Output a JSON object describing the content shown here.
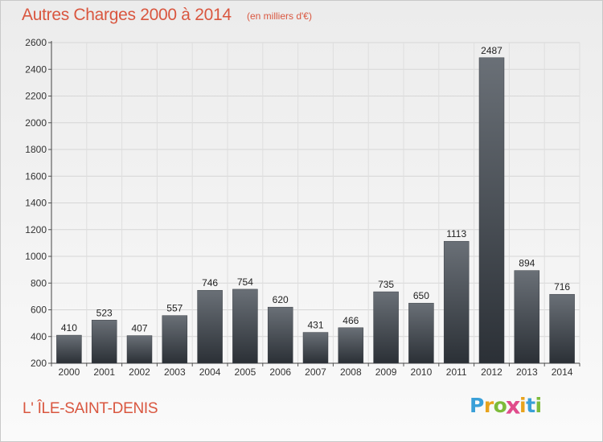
{
  "title": "Autres Charges 2000 à 2014",
  "subtitle": "(en milliers d'€)",
  "commune": "L' ÎLE-SAINT-DENIS",
  "logo": {
    "letters": [
      "P",
      "r",
      "o",
      "x",
      "i",
      "t",
      "i"
    ],
    "colors": [
      "#3aa0d8",
      "#e8a31c",
      "#7dbb3a",
      "#e04b8b",
      "#e8a31c",
      "#3aa0d8",
      "#7dbb3a"
    ]
  },
  "colors": {
    "accent": "#d9563f",
    "bar_top": "#6a7077",
    "bar_bottom": "#2b3036"
  },
  "chart_data": {
    "type": "bar",
    "categories": [
      "2000",
      "2001",
      "2002",
      "2003",
      "2004",
      "2005",
      "2006",
      "2007",
      "2008",
      "2009",
      "2010",
      "2011",
      "2012",
      "2013",
      "2014"
    ],
    "values": [
      410,
      523,
      407,
      557,
      746,
      754,
      620,
      431,
      466,
      735,
      650,
      1113,
      2487,
      894,
      716
    ],
    "ylim": [
      200,
      2600
    ],
    "yticks": [
      200,
      400,
      600,
      800,
      1000,
      1200,
      1400,
      1600,
      1800,
      2000,
      2200,
      2400,
      2600
    ],
    "grid": true,
    "xlabel": "",
    "ylabel": ""
  }
}
